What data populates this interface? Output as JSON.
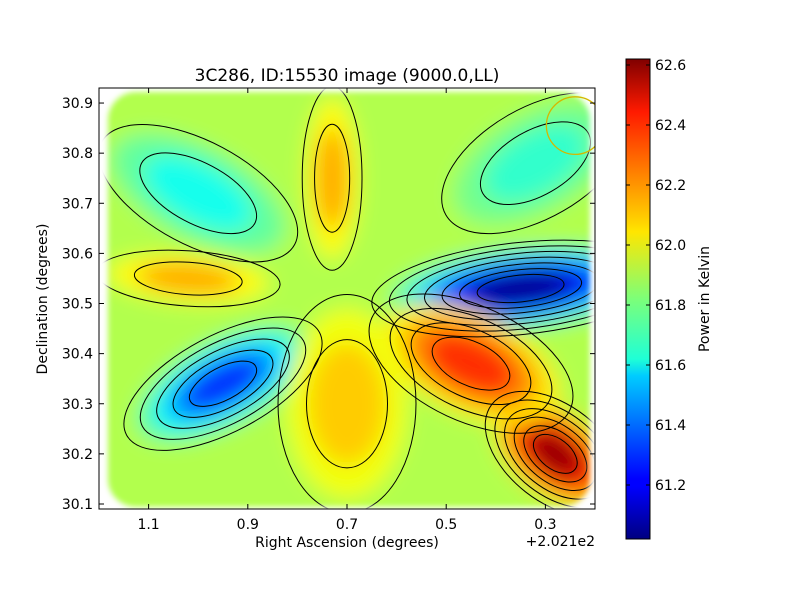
{
  "chart_data": {
    "type": "heatmap",
    "title": "3C286, ID:15530 image (9000.0,LL)",
    "xlabel": "Right Ascension (degrees)",
    "ylabel": "Declination (degrees)",
    "x_offset_label": "+2.021e2",
    "x_inverted": true,
    "xlim": [
      1.2,
      0.2
    ],
    "ylim": [
      30.09,
      30.93
    ],
    "x_ticks": [
      {
        "value": 1.1,
        "label": "1.1"
      },
      {
        "value": 0.9,
        "label": "0.9"
      },
      {
        "value": 0.7,
        "label": "0.7"
      },
      {
        "value": 0.5,
        "label": "0.5"
      },
      {
        "value": 0.3,
        "label": "0.3"
      }
    ],
    "y_ticks": [
      {
        "value": 30.1,
        "label": "30.1"
      },
      {
        "value": 30.2,
        "label": "30.2"
      },
      {
        "value": 30.3,
        "label": "30.3"
      },
      {
        "value": 30.4,
        "label": "30.4"
      },
      {
        "value": 30.5,
        "label": "30.5"
      },
      {
        "value": 30.6,
        "label": "30.6"
      },
      {
        "value": 30.7,
        "label": "30.7"
      },
      {
        "value": 30.8,
        "label": "30.8"
      },
      {
        "value": 30.9,
        "label": "30.9"
      }
    ],
    "colorbar": {
      "label": "Power in Kelvin",
      "colormap": "jet",
      "range": [
        61.02,
        62.62
      ],
      "ticks": [
        {
          "value": 61.2,
          "label": "61.2"
        },
        {
          "value": 61.4,
          "label": "61.4"
        },
        {
          "value": 61.6,
          "label": "61.6"
        },
        {
          "value": 61.8,
          "label": "61.8"
        },
        {
          "value": 62.0,
          "label": "62.0"
        },
        {
          "value": 62.2,
          "label": "62.2"
        },
        {
          "value": 62.4,
          "label": "62.4"
        },
        {
          "value": 62.6,
          "label": "62.6"
        }
      ]
    },
    "background_level": 61.9,
    "features": [
      {
        "name": "deep-minimum-east",
        "x": 0.35,
        "y": 30.53,
        "value": 61.05
      },
      {
        "name": "minimum-west",
        "x": 0.95,
        "y": 30.34,
        "value": 61.3
      },
      {
        "name": "maximum-southeast",
        "x": 0.28,
        "y": 30.2,
        "value": 62.58
      },
      {
        "name": "maximum-center-east",
        "x": 0.45,
        "y": 30.38,
        "value": 62.35
      },
      {
        "name": "ridge-center-north",
        "x": 0.73,
        "y": 30.75,
        "value": 62.15
      },
      {
        "name": "ridge-center-south",
        "x": 0.7,
        "y": 30.3,
        "value": 62.1
      },
      {
        "name": "ridge-west-arm",
        "x": 1.02,
        "y": 30.55,
        "value": 62.15
      },
      {
        "name": "valley-northwest",
        "x": 1.0,
        "y": 30.72,
        "value": 61.65
      },
      {
        "name": "valley-northeast",
        "x": 0.32,
        "y": 30.78,
        "value": 61.7
      }
    ],
    "beam": {
      "x": 0.24,
      "y": 30.855,
      "radius_deg": 0.058,
      "color": "#d4b800"
    },
    "contours": true
  }
}
